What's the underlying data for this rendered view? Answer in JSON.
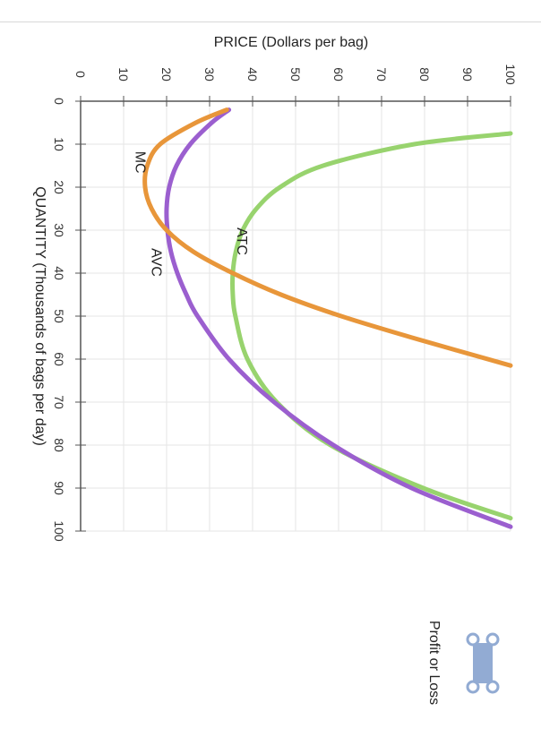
{
  "chart_data": {
    "type": "line",
    "title": "",
    "xlabel": "QUANTITY (Thousands of bags per day)",
    "ylabel": "PRICE (Dollars per bag)",
    "xlim": [
      0,
      100
    ],
    "ylim": [
      0,
      100
    ],
    "x_ticks": [
      "0",
      "10",
      "20",
      "30",
      "40",
      "50",
      "60",
      "70",
      "80",
      "90",
      "100"
    ],
    "y_ticks": [
      "0",
      "10",
      "20",
      "30",
      "40",
      "50",
      "60",
      "70",
      "80",
      "90",
      "100"
    ],
    "grid": true,
    "series": [
      {
        "name": "ATC",
        "color": "#98d36e",
        "x": [
          7.5,
          10,
          15,
          20,
          25,
          30,
          35,
          40,
          45,
          50,
          60,
          70,
          80,
          90,
          97
        ],
        "y": [
          100,
          77.6,
          56.4,
          46.4,
          40.9,
          37.7,
          36.1,
          35.4,
          35.4,
          36.0,
          38.8,
          45.6,
          58.1,
          79.7,
          100
        ]
      },
      {
        "name": "AVC",
        "color": "#9b5fcf",
        "x": [
          2,
          5,
          10,
          15,
          20,
          25,
          30,
          35,
          40,
          45,
          50,
          60,
          70,
          80,
          90,
          99
        ],
        "y": [
          34.5,
          30.5,
          25.5,
          22.3,
          20.6,
          20.0,
          20.2,
          21.0,
          22.5,
          24.6,
          27.2,
          34.5,
          45.0,
          58.8,
          77.0,
          100
        ]
      },
      {
        "name": "MC",
        "color": "#e8963a",
        "x": [
          2,
          5,
          10,
          15,
          20,
          25,
          30,
          35,
          40,
          45,
          50,
          55,
          61.5
        ],
        "y": [
          34,
          26.8,
          18.5,
          15.5,
          15.0,
          16.5,
          20.0,
          26.2,
          35.4,
          46.6,
          60.6,
          77.1,
          100
        ]
      }
    ],
    "annotations": [
      {
        "text": "MC",
        "x": 14.2,
        "y": 13.8
      },
      {
        "text": "AVC",
        "x": 37.5,
        "y": 17.5
      },
      {
        "text": "ATC",
        "x": 32.6,
        "y": 37.4
      }
    ],
    "legend": {
      "label": "Profit or Loss",
      "color": "#92abd3",
      "placement": "bottom-right"
    }
  }
}
